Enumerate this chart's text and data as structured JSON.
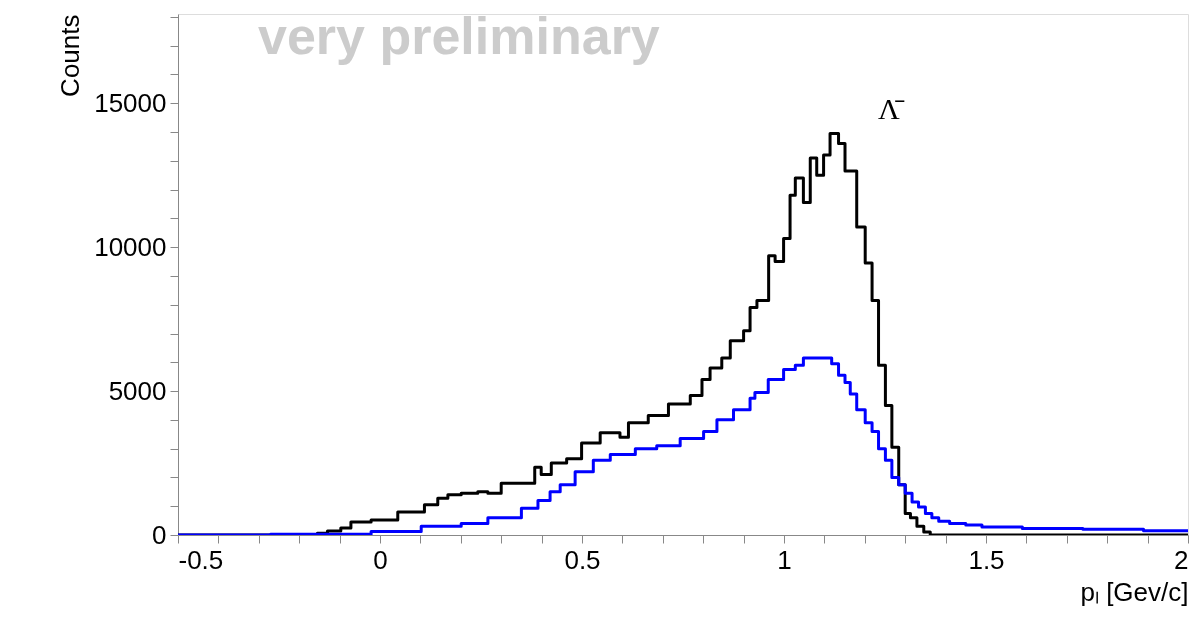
{
  "chart_data": {
    "type": "step",
    "xlabel": "pₗ [Gev/c]",
    "ylabel": "Counts",
    "annotations": [
      "very preliminary",
      "Λ̄"
    ],
    "xlim": [
      -0.5,
      2
    ],
    "ylim": [
      0,
      18100
    ],
    "xticks": [
      -0.5,
      {
        "value": -0.4,
        "label": null
      },
      {
        "value": -0.3,
        "label": null
      },
      {
        "value": -0.2,
        "label": null
      },
      {
        "value": -0.1,
        "label": null
      },
      0,
      {
        "value": 0.1,
        "label": null
      },
      {
        "value": 0.2,
        "label": null
      },
      {
        "value": 0.3,
        "label": null
      },
      {
        "value": 0.4,
        "label": null
      },
      0.5,
      {
        "value": 0.6,
        "label": null
      },
      {
        "value": 0.7,
        "label": null
      },
      {
        "value": 0.8,
        "label": null
      },
      {
        "value": 0.9,
        "label": null
      },
      1,
      {
        "value": 1.1,
        "label": null
      },
      {
        "value": 1.2,
        "label": null
      },
      {
        "value": 1.3,
        "label": null
      },
      {
        "value": 1.4,
        "label": null
      },
      1.5,
      {
        "value": 1.6,
        "label": null
      },
      {
        "value": 1.7,
        "label": null
      },
      {
        "value": 1.8,
        "label": null
      },
      {
        "value": 1.9,
        "label": null
      },
      2
    ],
    "yticks": [
      0,
      {
        "value": 1000,
        "label": null
      },
      {
        "value": 2000,
        "label": null
      },
      {
        "value": 3000,
        "label": null
      },
      {
        "value": 4000,
        "label": null
      },
      5000,
      {
        "value": 6000,
        "label": null
      },
      {
        "value": 7000,
        "label": null
      },
      {
        "value": 8000,
        "label": null
      },
      {
        "value": 9000,
        "label": null
      },
      10000,
      {
        "value": 11000,
        "label": null
      },
      {
        "value": 12000,
        "label": null
      },
      {
        "value": 13000,
        "label": null
      },
      {
        "value": 14000,
        "label": null
      },
      15000,
      {
        "value": 16000,
        "label": null
      },
      {
        "value": 17000,
        "label": null
      },
      {
        "value": 18000,
        "label": null
      }
    ],
    "grid": false,
    "series": [
      {
        "color": "#000000",
        "x": [
          -0.5,
          -0.155,
          -0.13,
          -0.097,
          -0.072,
          -0.022,
          0.044,
          0.11,
          0.143,
          0.168,
          0.201,
          0.242,
          0.267,
          0.3,
          0.383,
          0.399,
          0.424,
          0.462,
          0.499,
          0.545,
          0.594,
          0.615,
          0.664,
          0.714,
          0.768,
          0.797,
          0.817,
          0.846,
          0.867,
          0.9,
          0.916,
          0.933,
          0.962,
          0.978,
          0.999,
          1.015,
          1.028,
          1.048,
          1.065,
          1.081,
          1.098,
          1.114,
          1.135,
          1.151,
          1.18,
          1.201,
          1.218,
          1.234,
          1.251,
          1.267,
          1.284,
          1.3,
          1.313,
          1.329,
          1.346,
          1.362,
          2.0
        ],
        "values": [
          0,
          60,
          140,
          240,
          450,
          520,
          800,
          1050,
          1280,
          1400,
          1450,
          1500,
          1450,
          1800,
          2350,
          2100,
          2500,
          2650,
          3200,
          3550,
          3400,
          3900,
          4150,
          4550,
          4850,
          5400,
          5800,
          6150,
          6750,
          7100,
          7900,
          8150,
          9700,
          9500,
          10300,
          11800,
          12400,
          11550,
          13100,
          12500,
          13200,
          13950,
          13600,
          12650,
          10700,
          9450,
          8150,
          5900,
          4500,
          3050,
          1750,
          750,
          600,
          300,
          100,
          0,
          0
        ]
      },
      {
        "color": "#0000ff",
        "x": [
          -0.5,
          -0.271,
          -0.022,
          0.102,
          0.201,
          0.267,
          0.35,
          0.391,
          0.421,
          0.446,
          0.483,
          0.528,
          0.57,
          0.632,
          0.685,
          0.743,
          0.801,
          0.834,
          0.875,
          0.916,
          0.928,
          0.961,
          0.999,
          1.028,
          1.048,
          1.118,
          1.135,
          1.151,
          1.164,
          1.18,
          1.201,
          1.218,
          1.234,
          1.251,
          1.267,
          1.284,
          1.3,
          1.317,
          1.333,
          1.35,
          1.366,
          1.383,
          1.41,
          1.45,
          1.49,
          1.59,
          1.74,
          1.89,
          2.0
        ],
        "values": [
          0,
          30,
          120,
          300,
          400,
          600,
          930,
          1200,
          1500,
          1750,
          2200,
          2600,
          2800,
          3000,
          3100,
          3350,
          3600,
          4000,
          4350,
          4750,
          4950,
          5400,
          5750,
          5900,
          6150,
          5950,
          5550,
          5300,
          4900,
          4350,
          3900,
          3600,
          3000,
          2600,
          2000,
          1750,
          1450,
          1150,
          970,
          750,
          600,
          480,
          400,
          350,
          280,
          230,
          200,
          150,
          150
        ]
      }
    ]
  }
}
